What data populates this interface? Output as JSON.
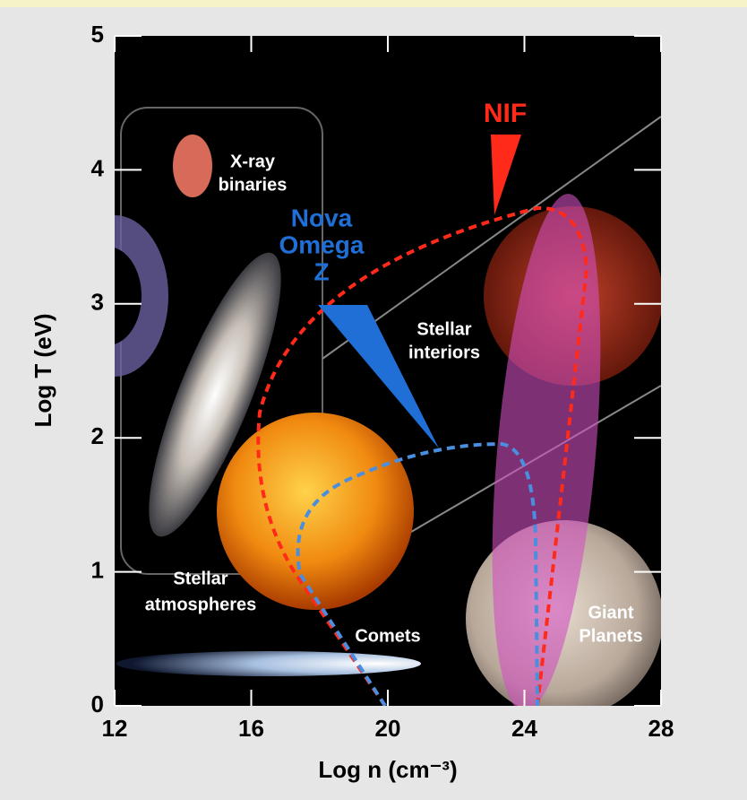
{
  "chart_data": {
    "type": "regions",
    "x_label": "Log n (cm⁻³)",
    "y_label": "Log T (eV)",
    "xlim": [
      12,
      28
    ],
    "xticks": [
      12,
      16,
      20,
      24,
      28
    ],
    "ylim": [
      0,
      5
    ],
    "yticks": [
      0,
      1,
      2,
      3,
      4,
      5
    ],
    "annotations": [
      {
        "lines": [
          "NIF"
        ],
        "color": "#ff2a1a"
      },
      {
        "lines": [
          "Nova",
          "Omega",
          "Z"
        ],
        "color": "#1f6fd6"
      },
      {
        "lines": [
          "X-ray",
          "binaries"
        ],
        "color": "#ffffff"
      },
      {
        "lines": [
          "Stellar",
          "interiors"
        ],
        "color": "#ffffff"
      },
      {
        "lines": [
          "Stellar",
          "atmospheres"
        ],
        "color": "#ffffff"
      },
      {
        "lines": [
          "Comets"
        ],
        "color": "#ffffff"
      },
      {
        "lines": [
          "Giant",
          "Planets"
        ],
        "color": "#ffffff"
      }
    ]
  }
}
